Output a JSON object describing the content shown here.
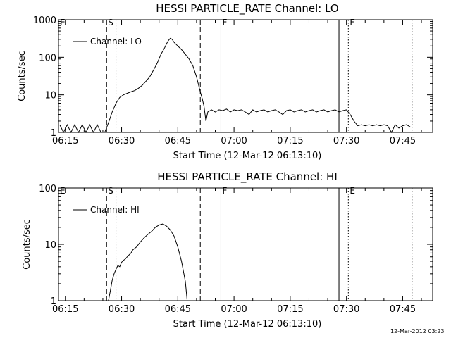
{
  "chart_data": [
    {
      "type": "line",
      "title": "HESSI PARTICLE_RATE Channel: LO",
      "xlabel": "Start Time (12-Mar-12 06:13:10)",
      "ylabel": "Counts/sec",
      "y_scale": "log",
      "ylim": [
        1,
        1000
      ],
      "xlim": [
        "06:13:10",
        "07:53:00"
      ],
      "x_tick_labels": [
        "06:15",
        "06:30",
        "06:45",
        "07:00",
        "07:15",
        "07:30",
        "07:45"
      ],
      "y_tick_labels": [
        "1",
        "10",
        "100",
        "1000"
      ],
      "legend": {
        "position": "top-left",
        "entries": [
          "Channel: LO"
        ]
      },
      "markers": [
        {
          "label": "E",
          "time": "06:13:10",
          "style": "solid"
        },
        {
          "label": "S",
          "time": "06:26:00",
          "style": "dashed"
        },
        {
          "label": "",
          "time": "06:28:30",
          "style": "dotted"
        },
        {
          "label": "",
          "time": "06:51:00",
          "style": "dashed"
        },
        {
          "label": "F",
          "time": "06:56:30",
          "style": "solid"
        },
        {
          "label": "",
          "time": "07:28:00",
          "style": "solid"
        },
        {
          "label": "E",
          "time": "07:30:30",
          "style": "dotted"
        },
        {
          "label": "",
          "time": "07:47:30",
          "style": "dotted"
        }
      ],
      "series": [
        {
          "name": "Channel: LO",
          "x": [
            "06:13:30",
            "06:14:30",
            "06:15:30",
            "06:16:30",
            "06:17:30",
            "06:18:30",
            "06:19:30",
            "06:20:30",
            "06:21:30",
            "06:22:30",
            "06:23:30",
            "06:24:30",
            "06:25:30",
            "06:26:30",
            "06:27:30",
            "06:28:30",
            "06:29:30",
            "06:30:30",
            "06:31:30",
            "06:32:30",
            "06:33:30",
            "06:34:30",
            "06:35:30",
            "06:36:30",
            "06:37:30",
            "06:38:30",
            "06:39:30",
            "06:40:30",
            "06:41:30",
            "06:42:00",
            "06:42:30",
            "06:43:00",
            "06:43:30",
            "06:44:00",
            "06:45:00",
            "06:46:00",
            "06:47:00",
            "06:48:00",
            "06:49:00",
            "06:50:00",
            "06:51:00",
            "06:51:30",
            "06:52:00",
            "06:52:30",
            "06:53:00",
            "06:54:00",
            "06:55:00",
            "06:56:00",
            "06:57:00",
            "06:58:00",
            "06:59:00",
            "07:00:00",
            "07:01:00",
            "07:02:00",
            "07:03:00",
            "07:04:00",
            "07:05:00",
            "07:06:00",
            "07:07:00",
            "07:08:00",
            "07:09:00",
            "07:10:00",
            "07:11:00",
            "07:12:00",
            "07:13:00",
            "07:14:00",
            "07:15:00",
            "07:16:00",
            "07:17:00",
            "07:18:00",
            "07:19:00",
            "07:20:00",
            "07:21:00",
            "07:22:00",
            "07:23:00",
            "07:24:00",
            "07:25:00",
            "07:26:00",
            "07:27:00",
            "07:28:00",
            "07:29:00",
            "07:30:00",
            "07:31:00",
            "07:32:00",
            "07:33:00",
            "07:34:00",
            "07:35:00",
            "07:36:00",
            "07:37:00",
            "07:38:00",
            "07:39:00",
            "07:40:00",
            "07:41:00",
            "07:42:00",
            "07:43:00",
            "07:44:00",
            "07:45:00",
            "07:46:00",
            "07:47:00"
          ],
          "y": [
            1.6,
            1,
            1.6,
            1,
            1.6,
            1,
            1.6,
            1,
            1.6,
            1,
            1.6,
            1,
            1,
            1.8,
            3.5,
            6,
            8.5,
            10,
            11,
            12,
            13,
            15,
            18,
            23,
            30,
            45,
            70,
            120,
            180,
            230,
            280,
            320,
            300,
            250,
            200,
            160,
            120,
            90,
            60,
            30,
            12,
            8,
            5,
            2,
            3.5,
            4,
            3.5,
            4,
            3.8,
            4.2,
            3.5,
            4,
            3.8,
            4,
            3.5,
            3,
            4,
            3.5,
            3.8,
            4,
            3.5,
            3.8,
            4,
            3.5,
            3,
            3.8,
            4,
            3.5,
            3.8,
            4,
            3.5,
            3.8,
            4,
            3.5,
            3.8,
            4,
            3.5,
            3.8,
            4,
            3.5,
            3.8,
            4,
            3,
            2,
            1.5,
            1.6,
            1.5,
            1.6,
            1.5,
            1.6,
            1.5,
            1.6,
            1.5,
            1,
            1.6,
            1.3,
            1.5,
            1.6,
            1.4
          ]
        }
      ]
    },
    {
      "type": "line",
      "title": "HESSI PARTICLE_RATE Channel: HI",
      "xlabel": "Start Time (12-Mar-12 06:13:10)",
      "ylabel": "Counts/sec",
      "y_scale": "log",
      "ylim": [
        1,
        100
      ],
      "xlim": [
        "06:13:10",
        "07:53:00"
      ],
      "x_tick_labels": [
        "06:15",
        "06:30",
        "06:45",
        "07:00",
        "07:15",
        "07:30",
        "07:45"
      ],
      "y_tick_labels": [
        "1",
        "10",
        "100"
      ],
      "legend": {
        "position": "top-left",
        "entries": [
          "Channel: HI"
        ]
      },
      "markers": [
        {
          "label": "E",
          "time": "06:13:10",
          "style": "solid"
        },
        {
          "label": "S",
          "time": "06:26:00",
          "style": "dashed"
        },
        {
          "label": "",
          "time": "06:28:30",
          "style": "dotted"
        },
        {
          "label": "",
          "time": "06:51:00",
          "style": "dashed"
        },
        {
          "label": "F",
          "time": "06:56:30",
          "style": "solid"
        },
        {
          "label": "",
          "time": "07:28:00",
          "style": "solid"
        },
        {
          "label": "E",
          "time": "07:30:30",
          "style": "dotted"
        },
        {
          "label": "",
          "time": "07:47:30",
          "style": "dotted"
        }
      ],
      "series": [
        {
          "name": "Channel: HI",
          "x": [
            "06:26:30",
            "06:27:00",
            "06:27:30",
            "06:28:00",
            "06:28:30",
            "06:29:00",
            "06:29:30",
            "06:30:00",
            "06:30:30",
            "06:31:00",
            "06:31:30",
            "06:32:00",
            "06:32:30",
            "06:33:00",
            "06:34:00",
            "06:35:00",
            "06:36:00",
            "06:37:00",
            "06:38:00",
            "06:39:00",
            "06:40:00",
            "06:41:00",
            "06:42:00",
            "06:43:00",
            "06:44:00",
            "06:45:00",
            "06:46:00",
            "06:47:00",
            "06:47:30"
          ],
          "y": [
            1,
            1.5,
            2.3,
            3,
            3.6,
            4.2,
            4,
            4.8,
            5.2,
            5.5,
            6,
            6.5,
            7,
            8,
            9,
            11,
            13,
            15,
            17,
            20,
            22,
            23,
            21,
            18,
            14,
            9,
            5,
            2.2,
            1
          ]
        }
      ]
    }
  ],
  "timestamp": "12-Mar-2012 03:23"
}
